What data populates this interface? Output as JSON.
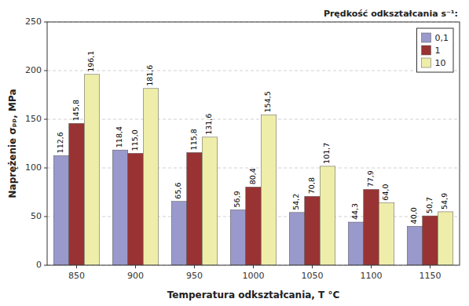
{
  "chart_data": {
    "type": "bar",
    "categories": [
      850,
      900,
      950,
      1000,
      1050,
      1100,
      1150
    ],
    "series": [
      {
        "name": "0,1",
        "color": "#9999cc",
        "values": [
          112.6,
          118.4,
          65.6,
          56.9,
          54.2,
          44.3,
          40.0
        ],
        "value_labels": [
          "112,6",
          "118,4",
          "65,6",
          "56,9",
          "54,2",
          "44,3",
          "40,0"
        ]
      },
      {
        "name": "1",
        "color": "#993333",
        "values": [
          145.8,
          115.0,
          115.8,
          80.4,
          70.8,
          77.9,
          50.7
        ],
        "value_labels": [
          "145,8",
          "115,0",
          "115,8",
          "80,4",
          "70,8",
          "77,9",
          "50,7"
        ]
      },
      {
        "name": "10",
        "color": "#eeeeaa",
        "values": [
          196.1,
          181.6,
          131.6,
          154.5,
          101.7,
          64.0,
          54.9
        ],
        "value_labels": [
          "196,1",
          "181,6",
          "131,6",
          "154,5",
          "101,7",
          "64,0",
          "54,9"
        ]
      }
    ],
    "xlabel": "Temperatura odkształcania, T °C",
    "ylabel": "Naprężenie σₚₚ, MPa",
    "legend_title": "Prędkość odkształcania s⁻¹:",
    "ylim": [
      0,
      250
    ],
    "yticks": [
      0,
      50,
      100,
      150,
      200,
      250
    ],
    "grid": true,
    "legend": "upper right",
    "data_labels": true
  }
}
